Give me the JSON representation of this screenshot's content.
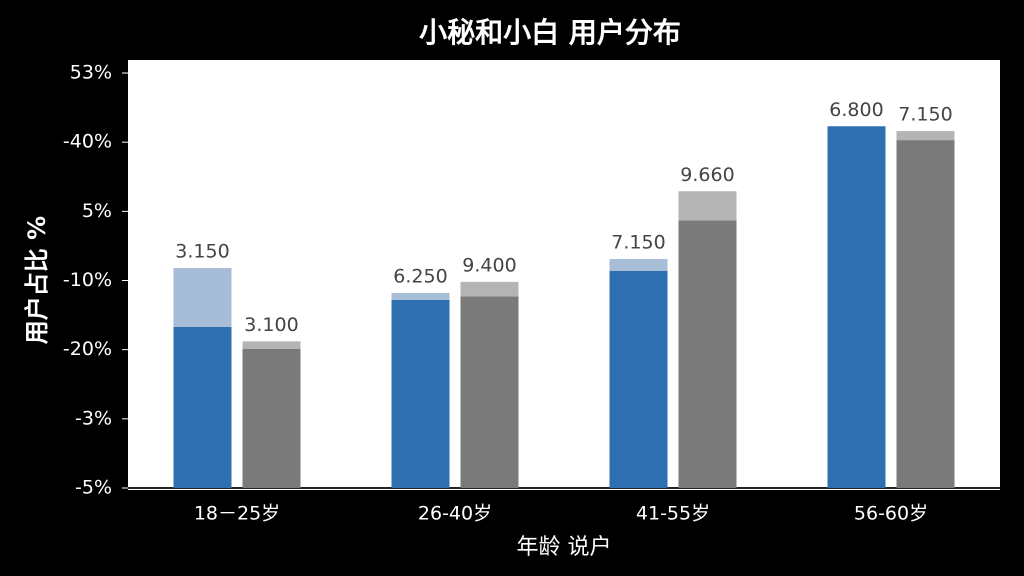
{
  "chart_data": {
    "type": "bar",
    "title": "小秘和小白 用户分布",
    "y_label": "用户占比 %",
    "x_label": "年龄 说户",
    "categories": [
      "18－25岁",
      "26-40岁",
      "41-55岁",
      "56-60岁"
    ],
    "ylim": [
      0,
      6
    ],
    "yticks": [
      {
        "value": 0,
        "label": "-5%"
      },
      {
        "value": 1,
        "label": "-3%"
      },
      {
        "value": 2,
        "label": "-20%"
      },
      {
        "value": 3,
        "label": "-10%"
      },
      {
        "value": 4,
        "label": "5%"
      },
      {
        "value": 5,
        "label": "-40%"
      },
      {
        "value": 6,
        "label": "53%"
      }
    ],
    "grid": false,
    "series": [
      {
        "color": "#2e6fb0",
        "values": [
          2.33,
          2.72,
          3.14,
          5.23
        ]
      },
      {
        "color": "#a7bcd6",
        "values": [
          0.85,
          0.1,
          0.17,
          0
        ],
        "annotations": [
          "3.150",
          "6.250",
          "7.150",
          "6.800"
        ]
      },
      {
        "color": "#7a7a7a",
        "values": [
          2.01,
          2.77,
          3.87,
          5.03
        ]
      },
      {
        "color": "#b4b4b4",
        "values": [
          0.11,
          0.21,
          0.42,
          0.13
        ],
        "annotations": [
          "3.100",
          "9.400",
          "9.660",
          "7.150"
        ]
      }
    ]
  }
}
